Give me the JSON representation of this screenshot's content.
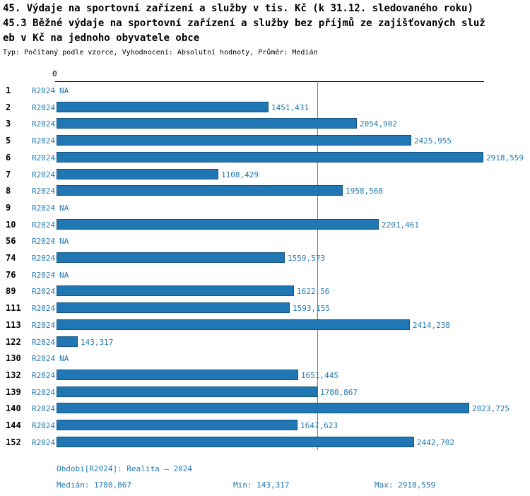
{
  "title": {
    "line1": "45. Výdaje na sportovní zařízení a služby v tis. Kč (k 31.12. sledovaného roku)",
    "line2": "45.3 Běžné výdaje na sportovní zařízení a služby bez příjmů ze zajišťovaných služ",
    "line3": "eb v Kč na jednoho obyvatele obce",
    "meta": "Typ: Počítaný podle vzorce, Vyhodnocení: Absolutní hodnoty, Průměr: Medián"
  },
  "chart_data": {
    "type": "bar",
    "orientation": "horizontal",
    "series_label": "R2024",
    "zero_tick_label": "0",
    "na_label": "NA",
    "categories": [
      "1",
      "2",
      "3",
      "5",
      "6",
      "7",
      "8",
      "9",
      "10",
      "56",
      "74",
      "76",
      "89",
      "111",
      "113",
      "122",
      "130",
      "132",
      "139",
      "140",
      "144",
      "152"
    ],
    "values": [
      null,
      1451.431,
      2054.902,
      2425.955,
      2918.559,
      1108.429,
      1958.568,
      null,
      2201.461,
      null,
      1559.573,
      null,
      1622.56,
      1593.155,
      2414.238,
      143.317,
      null,
      1651.445,
      1780.867,
      2823.725,
      1647.623,
      2442.702
    ],
    "value_labels": [
      "NA",
      "1451,431",
      "2054,902",
      "2425,955",
      "2918,559",
      "1108,429",
      "1958,568",
      "NA",
      "2201,461",
      "NA",
      "1559,573",
      "NA",
      "1622,56",
      "1593,155",
      "2414,238",
      "143,317",
      "NA",
      "1651,445",
      "1780,867",
      "2823,725",
      "1647,623",
      "2442,702"
    ],
    "xlim": [
      0,
      2918.559
    ],
    "median_value": 1780.867,
    "bar_color": "#2077b4",
    "bar_border_color": "#14537f",
    "label_color": "#1f77b4",
    "median_line_color": "#4d82ab",
    "grid": false,
    "legend_position": "none",
    "xlabel": "",
    "ylabel": ""
  },
  "footer": {
    "period": "Období[R2024]: Realita – 2024",
    "median": "Medián: 1780,867",
    "min": "Min: 143,317",
    "max": "Max: 2918,559"
  }
}
